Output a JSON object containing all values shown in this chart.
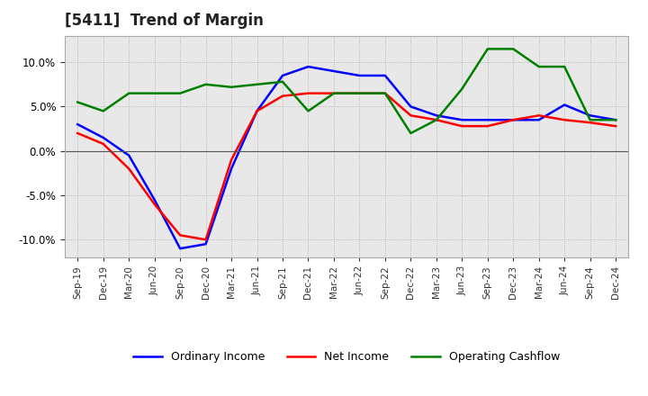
{
  "title": "[5411]  Trend of Margin",
  "x_labels": [
    "Sep-19",
    "Dec-19",
    "Mar-20",
    "Jun-20",
    "Sep-20",
    "Dec-20",
    "Mar-21",
    "Jun-21",
    "Sep-21",
    "Dec-21",
    "Mar-22",
    "Jun-22",
    "Sep-22",
    "Dec-22",
    "Mar-23",
    "Jun-23",
    "Sep-23",
    "Dec-23",
    "Mar-24",
    "Jun-24",
    "Sep-24",
    "Dec-24"
  ],
  "ordinary_income": [
    3.0,
    1.5,
    -0.5,
    -5.5,
    -11.0,
    -10.5,
    -2.0,
    4.5,
    8.5,
    9.5,
    9.0,
    8.5,
    8.5,
    5.0,
    4.0,
    3.5,
    3.5,
    3.5,
    3.5,
    5.2,
    4.0,
    3.5
  ],
  "net_income": [
    2.0,
    0.8,
    -2.0,
    -6.0,
    -9.5,
    -10.0,
    -1.0,
    4.5,
    6.2,
    6.5,
    6.5,
    6.5,
    6.5,
    4.0,
    3.5,
    2.8,
    2.8,
    3.5,
    4.0,
    3.5,
    3.2,
    2.8
  ],
  "operating_cashflow": [
    5.5,
    4.5,
    6.5,
    6.5,
    6.5,
    7.5,
    7.2,
    7.5,
    7.8,
    4.5,
    6.5,
    6.5,
    6.5,
    2.0,
    3.5,
    7.0,
    11.5,
    11.5,
    9.5,
    9.5,
    3.5,
    3.5
  ],
  "color_ordinary": "#0000ff",
  "color_net": "#ff0000",
  "color_cashflow": "#008000",
  "ylim": [
    -12,
    13
  ],
  "yticks": [
    -10.0,
    -5.0,
    0.0,
    5.0,
    10.0
  ],
  "background_color": "#ffffff",
  "plot_bg_color": "#e8e8e8"
}
